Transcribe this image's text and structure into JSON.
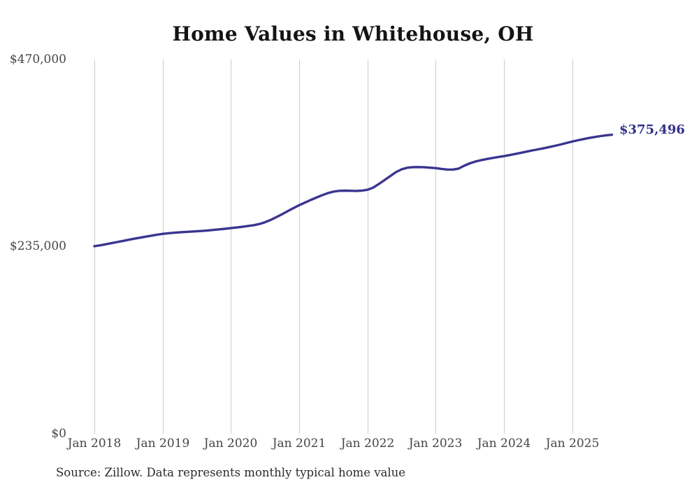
{
  "chart_data": {
    "type": "line",
    "title": "Home Values in Whitehouse, OH",
    "series_name": "Monthly typical home value",
    "x_range": {
      "start": "2018-01",
      "end": "2025-08",
      "freq": "monthly"
    },
    "x_ticks": [
      "Jan 2018",
      "Jan 2019",
      "Jan 2020",
      "Jan 2021",
      "Jan 2022",
      "Jan 2023",
      "Jan 2024",
      "Jan 2025"
    ],
    "y_ticks": [
      "$470,000",
      "$235,000",
      "$0"
    ],
    "y_tick_values": [
      470000,
      235000,
      0
    ],
    "ylim": [
      0,
      470000
    ],
    "values": [
      235500,
      236600,
      237900,
      239300,
      240700,
      242100,
      243500,
      244900,
      246200,
      247500,
      248700,
      249900,
      251000,
      251800,
      252400,
      252900,
      253400,
      253800,
      254200,
      254700,
      255300,
      256000,
      256700,
      257400,
      258200,
      259000,
      259900,
      260800,
      261900,
      263400,
      265600,
      268600,
      272000,
      275700,
      279500,
      283300,
      287000,
      290200,
      293400,
      296500,
      299400,
      302000,
      304000,
      305000,
      305300,
      305100,
      304900,
      305300,
      306300,
      309000,
      313500,
      318500,
      323500,
      328500,
      332000,
      334000,
      334800,
      334900,
      334600,
      334100,
      333600,
      332600,
      331800,
      331700,
      332900,
      336500,
      339500,
      341800,
      343600,
      345000,
      346300,
      347500,
      348600,
      349900,
      351300,
      352800,
      354300,
      355800,
      357100,
      358500,
      360000,
      361600,
      363300,
      365100,
      366900,
      368500,
      370000,
      371400,
      372700,
      373800,
      374800,
      375496
    ],
    "end_value": 375496,
    "end_label": "$375,496",
    "line_color": "#3b3590",
    "gridline_color": "#cccccc",
    "grid": "vertical-only",
    "legend": "none"
  },
  "footer": {
    "source": "Source: Zillow. Data represents monthly typical home value"
  }
}
